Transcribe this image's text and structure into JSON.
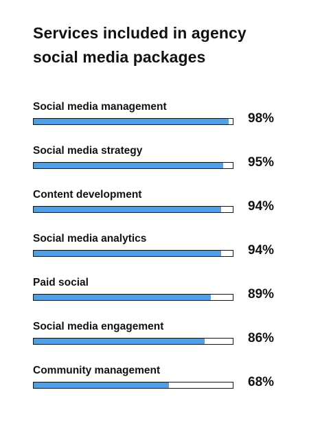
{
  "chart_data": {
    "type": "bar",
    "orientation": "horizontal",
    "title": "Services included in agency social media packages",
    "categories": [
      "Social media management",
      "Social media strategy",
      "Content development",
      "Social media analytics",
      "Paid social",
      "Social media engagement",
      "Community management"
    ],
    "values": [
      98,
      95,
      94,
      94,
      89,
      86,
      68
    ],
    "value_labels": [
      "98%",
      "95%",
      "94%",
      "94%",
      "89%",
      "86%",
      "68%"
    ],
    "unit": "%",
    "xlim": [
      0,
      100
    ],
    "grid": false,
    "legend": "none",
    "colors": {
      "bar_fill": "#4f9fe6",
      "bar_track": "#ffffff",
      "bar_border": "#111111",
      "text": "#111111"
    }
  }
}
